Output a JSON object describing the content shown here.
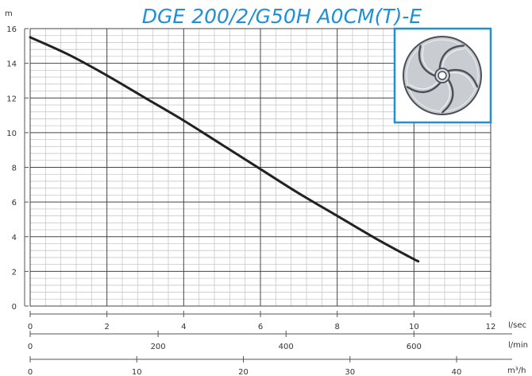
{
  "colors": {
    "title": "#1f8fd6",
    "inset_border": "#1f8fd6",
    "curve": "#222222",
    "grid_major": "#444444",
    "grid_minor": "#c8c8c8",
    "impeller_fill": "#c9ccd0",
    "impeller_stroke": "#4a5058"
  },
  "inset": {
    "icon": "impeller-icon"
  },
  "chart_data": {
    "type": "line",
    "title": "DGE 200/2/G50H A0CM(T)-E",
    "ylabel": "m",
    "ylim": [
      0,
      16
    ],
    "yticks": [
      "0",
      "2",
      "4",
      "6",
      "8",
      "10",
      "12",
      "14",
      "16"
    ],
    "xlim": [
      0,
      12
    ],
    "grid": true,
    "x_axes": [
      {
        "unit": "l/sec",
        "range": [
          0,
          12
        ],
        "ticks": [
          "0",
          "2",
          "4",
          "6",
          "8",
          "10",
          "12"
        ]
      },
      {
        "unit": "l/min",
        "range": [
          0,
          720
        ],
        "ticks": [
          "0",
          "200",
          "400",
          "600"
        ]
      },
      {
        "unit": "m³/h",
        "range": [
          0,
          43.2
        ],
        "ticks": [
          "0",
          "10",
          "20",
          "30",
          "40"
        ]
      }
    ],
    "series": [
      {
        "x": [
          0,
          1,
          2,
          3,
          4,
          5,
          6,
          7,
          8,
          9,
          10,
          10.1
        ],
        "y": [
          15.5,
          14.5,
          13.3,
          12.0,
          10.7,
          9.3,
          7.9,
          6.5,
          5.2,
          3.9,
          2.7,
          2.6
        ]
      }
    ]
  }
}
